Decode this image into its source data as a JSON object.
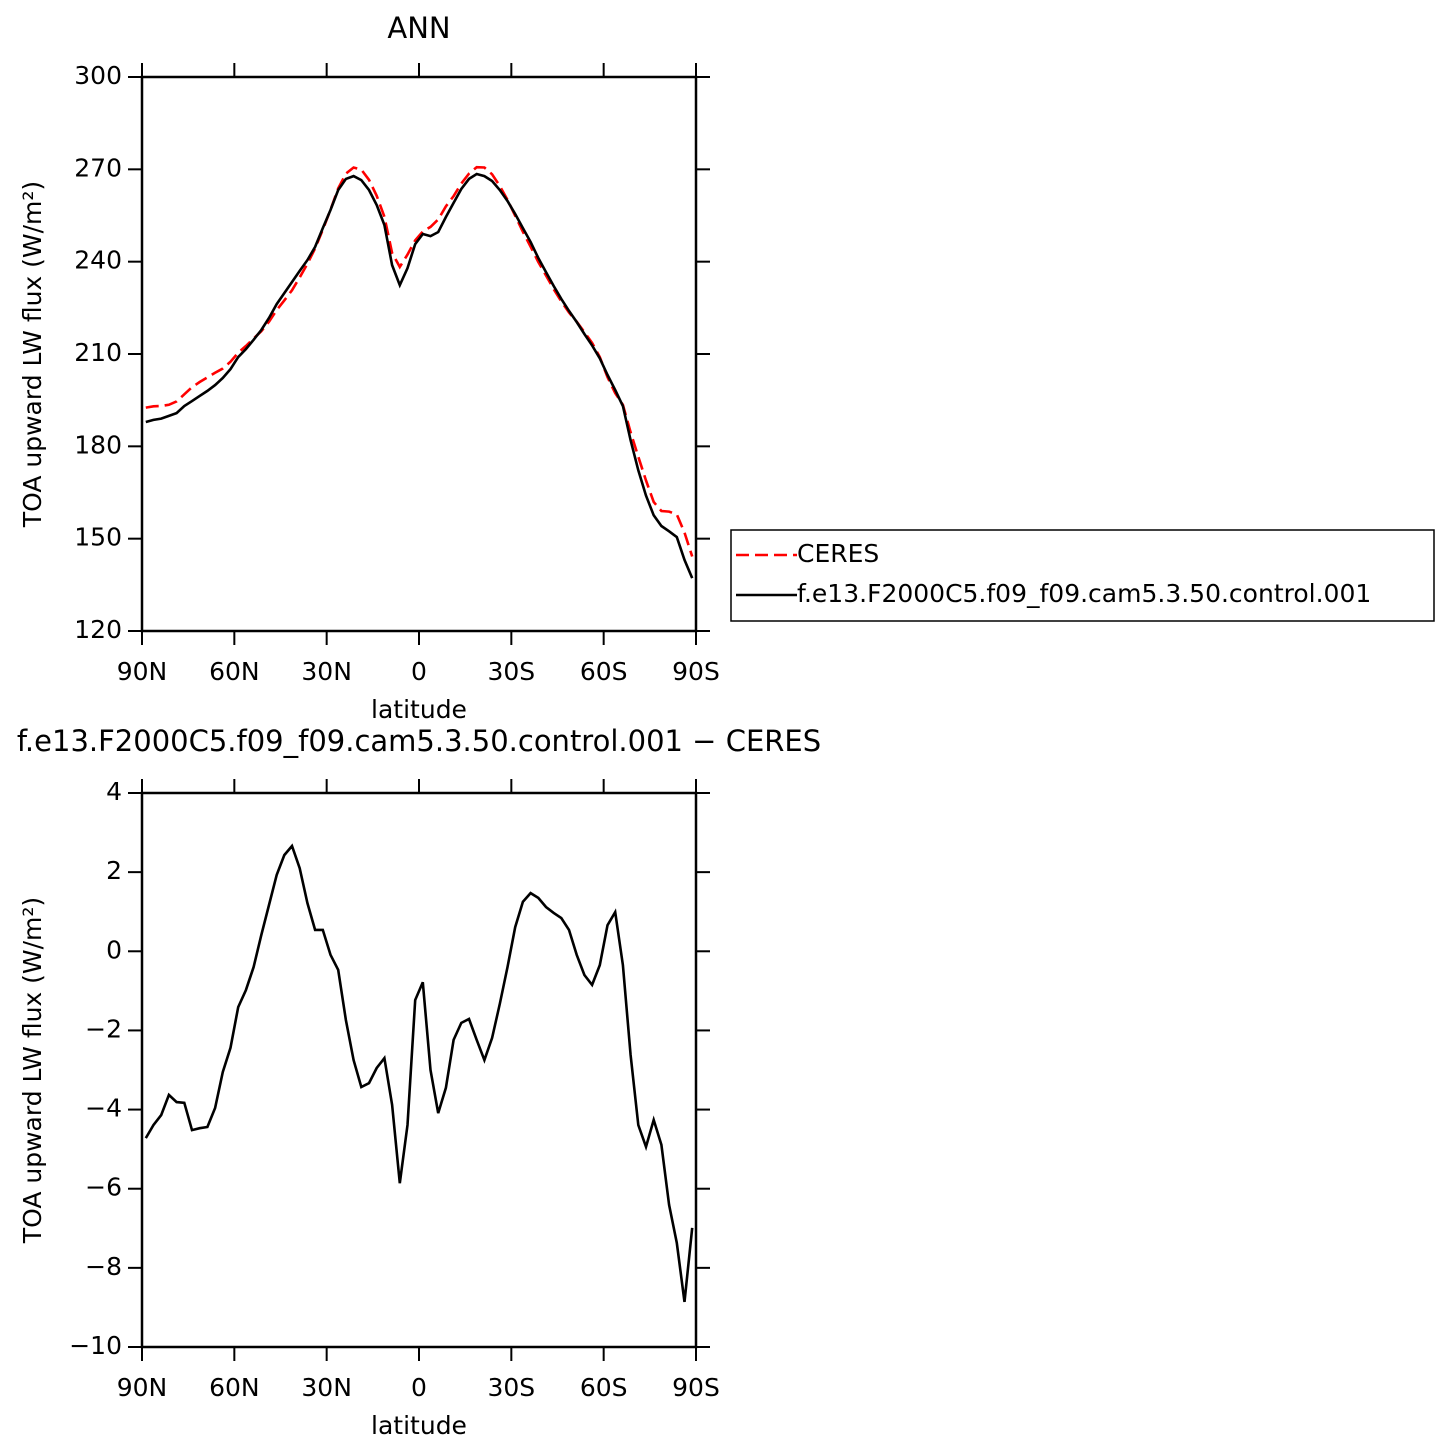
{
  "chart_data": [
    {
      "type": "line",
      "title": "ANN",
      "ylabel": "TOA upward LW flux (W/m²)",
      "xlabel": "latitude",
      "x": [
        88.75,
        86.25,
        83.75,
        81.25,
        78.75,
        76.25,
        73.75,
        71.25,
        68.75,
        66.25,
        63.75,
        61.25,
        58.75,
        56.25,
        53.75,
        51.25,
        48.75,
        46.25,
        43.75,
        41.25,
        38.75,
        36.25,
        33.75,
        31.25,
        28.75,
        26.25,
        23.75,
        21.25,
        18.75,
        16.25,
        13.75,
        11.25,
        8.75,
        6.25,
        3.75,
        1.25,
        -1.25,
        -3.75,
        -6.25,
        -8.75,
        -11.25,
        -13.75,
        -16.25,
        -18.75,
        -21.25,
        -23.75,
        -26.25,
        -28.75,
        -31.25,
        -33.75,
        -36.25,
        -38.75,
        -41.25,
        -43.75,
        -46.25,
        -48.75,
        -51.25,
        -53.75,
        -56.25,
        -58.75,
        -61.25,
        -63.75,
        -66.25,
        -68.75,
        -71.25,
        -73.75,
        -76.25,
        -78.75,
        -81.25,
        -83.75,
        -86.25,
        -88.75
      ],
      "series": [
        {
          "name": "CERES",
          "color": "#ff0000",
          "style": "dashed",
          "values": [
            192.6,
            193.0,
            193.1,
            193.5,
            194.6,
            196.9,
            199.2,
            200.9,
            202.4,
            203.9,
            205.3,
            207.5,
            210.4,
            212.6,
            215.0,
            217.4,
            220.5,
            224.3,
            227.4,
            230.7,
            234.9,
            239.3,
            244.3,
            250.4,
            256.9,
            263.8,
            268.6,
            270.6,
            269.9,
            266.6,
            261.4,
            254.6,
            242.8,
            238.3,
            242.3,
            246.9,
            249.8,
            251.3,
            253.7,
            258.0,
            261.3,
            265.4,
            268.6,
            270.7,
            270.6,
            268.4,
            264.6,
            260.1,
            254.9,
            249.7,
            244.9,
            239.9,
            235.5,
            231.1,
            227.1,
            223.5,
            220.5,
            217.1,
            213.6,
            209.0,
            202.5,
            197.3,
            193.5,
            184.6,
            176.6,
            168.9,
            161.9,
            159.0,
            158.8,
            157.9,
            152.0,
            144.2
          ]
        },
        {
          "name": "f.e13.F2000C5.f09_f09.cam5.3.50.control.001",
          "color": "#000000",
          "style": "solid",
          "values": [
            187.9,
            188.6,
            189.0,
            189.9,
            190.8,
            193.1,
            194.7,
            196.4,
            198.0,
            199.9,
            202.2,
            205.1,
            209.0,
            211.6,
            214.6,
            217.8,
            221.7,
            226.2,
            229.8,
            233.4,
            237.0,
            240.5,
            244.8,
            250.9,
            256.8,
            263.3,
            266.9,
            267.8,
            266.5,
            263.3,
            258.4,
            251.9,
            238.9,
            232.4,
            237.9,
            245.7,
            249.0,
            248.3,
            249.6,
            254.5,
            259.1,
            263.6,
            266.9,
            268.5,
            267.8,
            266.2,
            263.3,
            259.7,
            255.5,
            250.9,
            246.4,
            241.2,
            236.6,
            232.1,
            227.9,
            224.0,
            220.4,
            216.5,
            212.8,
            208.6,
            203.2,
            198.3,
            193.1,
            182.0,
            172.2,
            164.0,
            157.6,
            154.1,
            152.4,
            150.5,
            143.1,
            137.2
          ]
        }
      ],
      "xlim": [
        90,
        -90
      ],
      "xticks": [
        {
          "value": 90,
          "label": "90N"
        },
        {
          "value": 60,
          "label": "60N"
        },
        {
          "value": 30,
          "label": "30N"
        },
        0,
        {
          "value": -30,
          "label": "30S"
        },
        {
          "value": -60,
          "label": "60S"
        },
        {
          "value": -90,
          "label": "90S"
        }
      ],
      "ylim": [
        120,
        300
      ],
      "yticks": [
        120,
        150,
        180,
        210,
        240,
        270,
        300
      ],
      "legend": "right"
    },
    {
      "type": "line",
      "title": "f.e13.F2000C5.f09_f09.cam5.3.50.control.001 − CERES",
      "ylabel": "TOA upward LW flux (W/m²)",
      "xlabel": "latitude",
      "x": [
        88.75,
        86.25,
        83.75,
        81.25,
        78.75,
        76.25,
        73.75,
        71.25,
        68.75,
        66.25,
        63.75,
        61.25,
        58.75,
        56.25,
        53.75,
        51.25,
        48.75,
        46.25,
        43.75,
        41.25,
        38.75,
        36.25,
        33.75,
        31.25,
        28.75,
        26.25,
        23.75,
        21.25,
        18.75,
        16.25,
        13.75,
        11.25,
        8.75,
        6.25,
        3.75,
        1.25,
        -1.25,
        -3.75,
        -6.25,
        -8.75,
        -11.25,
        -13.75,
        -16.25,
        -18.75,
        -21.25,
        -23.75,
        -26.25,
        -28.75,
        -31.25,
        -33.75,
        -36.25,
        -38.75,
        -41.25,
        -43.75,
        -46.25,
        -48.75,
        -51.25,
        -53.75,
        -56.25,
        -58.75,
        -61.25,
        -63.75,
        -66.25,
        -68.75,
        -71.25,
        -73.75,
        -76.25,
        -78.75,
        -81.25,
        -83.75,
        -86.25,
        -88.75
      ],
      "color": "#000000",
      "style": "solid",
      "values": [
        -4.72,
        -4.39,
        -4.14,
        -3.63,
        -3.81,
        -3.83,
        -4.52,
        -4.47,
        -4.44,
        -3.96,
        -3.05,
        -2.44,
        -1.41,
        -0.98,
        -0.4,
        0.41,
        1.17,
        1.93,
        2.43,
        2.66,
        2.1,
        1.22,
        0.54,
        0.54,
        -0.09,
        -0.47,
        -1.74,
        -2.75,
        -3.43,
        -3.33,
        -2.95,
        -2.7,
        -3.88,
        -5.86,
        -4.39,
        -1.23,
        -0.78,
        -3.0,
        -4.09,
        -3.45,
        -2.24,
        -1.81,
        -1.71,
        -2.24,
        -2.75,
        -2.19,
        -1.33,
        -0.4,
        0.61,
        1.25,
        1.47,
        1.35,
        1.12,
        0.97,
        0.84,
        0.54,
        -0.09,
        -0.6,
        -0.85,
        -0.35,
        0.66,
        0.99,
        -0.35,
        -2.62,
        -4.39,
        -4.94,
        -4.26,
        -4.89,
        -6.41,
        -7.37,
        -8.86,
        -6.99
      ],
      "xlim": [
        90,
        -90
      ],
      "xticks": [
        {
          "value": 90,
          "label": "90N"
        },
        {
          "value": 60,
          "label": "60N"
        },
        {
          "value": 30,
          "label": "30N"
        },
        0,
        {
          "value": -30,
          "label": "30S"
        },
        {
          "value": -60,
          "label": "60S"
        },
        {
          "value": -90,
          "label": "90S"
        }
      ],
      "ylim": [
        -10,
        4
      ],
      "yticks": [
        {
          "value": -10,
          "label": "−10"
        },
        {
          "value": -8,
          "label": "−8"
        },
        {
          "value": -6,
          "label": "−6"
        },
        {
          "value": -4,
          "label": "−4"
        },
        {
          "value": -2,
          "label": "−2"
        },
        0,
        2,
        4
      ]
    }
  ]
}
